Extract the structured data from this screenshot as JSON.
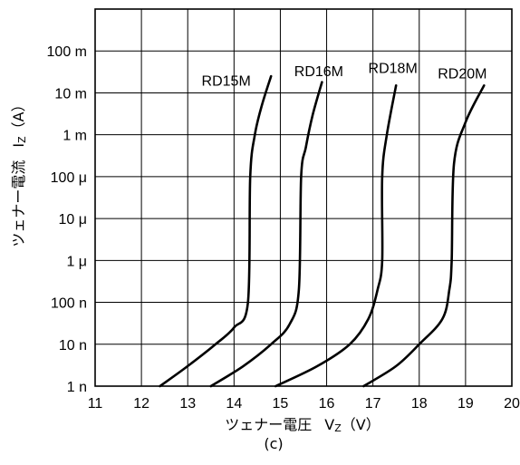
{
  "chart_data": {
    "type": "line",
    "xlabel": "ツェナー電圧",
    "xlabel_symbol": "V",
    "xlabel_sub": "Z",
    "xlabel_unit": "（V）",
    "ylabel": "ツェナー電流",
    "ylabel_symbol": "I",
    "ylabel_sub": "Z",
    "ylabel_unit": "（A）",
    "caption": "(c)",
    "xlim": [
      11,
      20
    ],
    "x_ticks": [
      "11",
      "12",
      "13",
      "14",
      "15",
      "16",
      "17",
      "18",
      "19",
      "20"
    ],
    "y_scale": "log",
    "ylim": [
      1e-09,
      1
    ],
    "y_tick_values": [
      1e-09,
      1e-08,
      1e-07,
      1e-06,
      1e-05,
      0.0001,
      0.001,
      0.01,
      0.1,
      1
    ],
    "y_tick_labels": [
      "1 n",
      "10 n",
      "100 n",
      "1 μ",
      "10 μ",
      "100 μ",
      "1 m",
      "10 m",
      "100 m",
      ""
    ],
    "grid": true,
    "series": [
      {
        "name": "RD15M",
        "points": [
          [
            12.4,
            1e-09
          ],
          [
            13.0,
            3e-09
          ],
          [
            13.6,
            1e-08
          ],
          [
            14.0,
            2.5e-08
          ],
          [
            14.3,
            1e-07
          ],
          [
            14.35,
            0.0001
          ],
          [
            14.45,
            0.001
          ],
          [
            14.6,
            0.005
          ],
          [
            14.8,
            0.025
          ]
        ]
      },
      {
        "name": "RD16M",
        "points": [
          [
            13.5,
            1e-09
          ],
          [
            14.2,
            3e-09
          ],
          [
            14.8,
            1e-08
          ],
          [
            15.2,
            3e-08
          ],
          [
            15.4,
            2e-07
          ],
          [
            15.45,
            0.0001
          ],
          [
            15.55,
            0.0005
          ],
          [
            15.7,
            0.003
          ],
          [
            15.9,
            0.018
          ]
        ]
      },
      {
        "name": "RD18M",
        "points": [
          [
            14.9,
            1e-09
          ],
          [
            15.8,
            3e-09
          ],
          [
            16.5,
            1e-08
          ],
          [
            16.9,
            4e-08
          ],
          [
            17.1,
            2e-07
          ],
          [
            17.2,
            1e-06
          ],
          [
            17.2,
            0.0001
          ],
          [
            17.3,
            0.001
          ],
          [
            17.5,
            0.015
          ]
        ]
      },
      {
        "name": "RD20M",
        "points": [
          [
            16.8,
            1e-09
          ],
          [
            17.5,
            3e-09
          ],
          [
            18.0,
            1e-08
          ],
          [
            18.5,
            4e-08
          ],
          [
            18.65,
            2e-07
          ],
          [
            18.7,
            1e-06
          ],
          [
            18.75,
            0.0002
          ],
          [
            19.0,
            0.002
          ],
          [
            19.4,
            0.015
          ]
        ]
      }
    ],
    "curve_labels": [
      {
        "text": "RD15M",
        "x": 13.3,
        "y": 0.015
      },
      {
        "text": "RD16M",
        "x": 15.3,
        "y": 0.025
      },
      {
        "text": "RD18M",
        "x": 16.9,
        "y": 0.03
      },
      {
        "text": "RD20M",
        "x": 18.4,
        "y": 0.022
      }
    ]
  }
}
